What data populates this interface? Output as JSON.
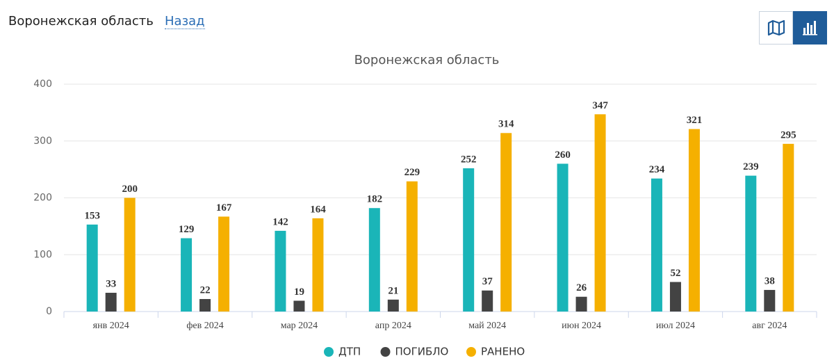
{
  "header": {
    "title": "Воронежская область",
    "back_link": "Назад"
  },
  "chart_data": {
    "type": "bar",
    "title": "Воронежская область",
    "categories": [
      "янв 2024",
      "фев 2024",
      "мар 2024",
      "апр 2024",
      "май 2024",
      "июн 2024",
      "июл 2024",
      "авг 2024"
    ],
    "series": [
      {
        "name": "ДТП",
        "color": "#1ab5b8",
        "values": [
          153,
          129,
          142,
          182,
          252,
          260,
          234,
          239
        ]
      },
      {
        "name": "ПОГИБЛО",
        "color": "#434343",
        "values": [
          33,
          22,
          19,
          21,
          37,
          26,
          52,
          38
        ]
      },
      {
        "name": "РАНЕНО",
        "color": "#f5b000",
        "values": [
          200,
          167,
          164,
          229,
          314,
          347,
          321,
          295
        ]
      }
    ],
    "ylim": [
      0,
      400
    ],
    "yticks": [
      0,
      100,
      200,
      300,
      400
    ],
    "grid": true,
    "legend": "bottom"
  }
}
